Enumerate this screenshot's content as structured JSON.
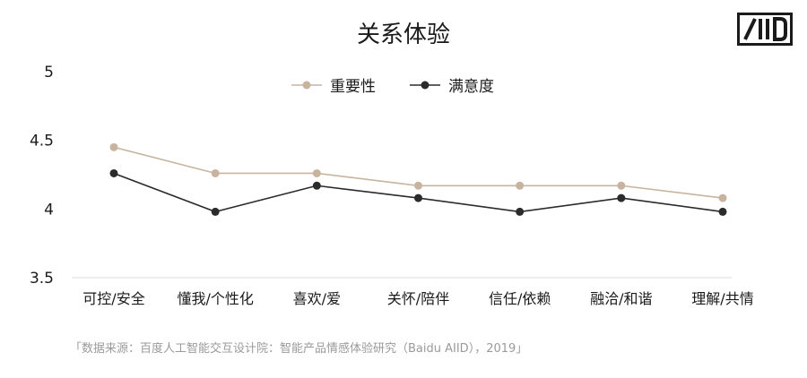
{
  "chart_data": {
    "type": "line",
    "title": "关系体验",
    "categories": [
      "可控/安全",
      "懂我/个性化",
      "喜欢/爱",
      "关怀/陪伴",
      "信任/依赖",
      "融洽/和谐",
      "理解/共情"
    ],
    "series": [
      {
        "name": "重要性",
        "color": "#c8b49e",
        "values": [
          4.45,
          4.26,
          4.26,
          4.17,
          4.17,
          4.17,
          4.08
        ]
      },
      {
        "name": "满意度",
        "color": "#2b2b2b",
        "values": [
          4.26,
          3.98,
          4.17,
          4.08,
          3.98,
          4.08,
          3.98
        ]
      }
    ],
    "yticks": [
      "5",
      "4.5",
      "4",
      "3.5"
    ],
    "ylim": [
      3.5,
      5
    ],
    "grid": false,
    "legend_position": "top-center"
  },
  "source_note": "「数据来源：百度人工智能交互设计院：智能产品情感体验研究（Baidu AIID），2019」",
  "logo": {
    "text": "AIID"
  }
}
